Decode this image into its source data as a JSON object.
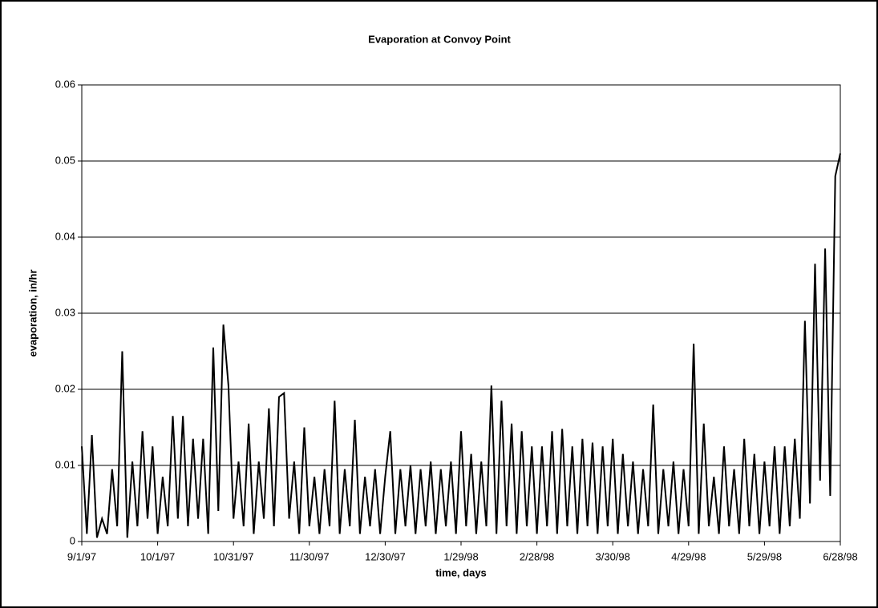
{
  "chart_data": {
    "type": "line",
    "title": "Evaporation at Convoy Point",
    "x_label": "time, days",
    "y_label": "evaporation, in/hr",
    "categories": [
      "9/1/97",
      null,
      null,
      null,
      null,
      null,
      null,
      null,
      null,
      null,
      null,
      null,
      null,
      null,
      null,
      "10/1/97",
      null,
      null,
      null,
      null,
      null,
      null,
      null,
      null,
      null,
      null,
      null,
      null,
      null,
      null,
      "10/31/97",
      null,
      null,
      null,
      null,
      null,
      null,
      null,
      null,
      null,
      null,
      null,
      null,
      null,
      null,
      "11/30/97",
      null,
      null,
      null,
      null,
      null,
      null,
      null,
      null,
      null,
      null,
      null,
      null,
      null,
      null,
      "12/30/97",
      null,
      null,
      null,
      null,
      null,
      null,
      null,
      null,
      null,
      null,
      null,
      null,
      null,
      null,
      "1/29/98",
      null,
      null,
      null,
      null,
      null,
      null,
      null,
      null,
      null,
      null,
      null,
      null,
      null,
      null,
      "2/28/98",
      null,
      null,
      null,
      null,
      null,
      null,
      null,
      null,
      null,
      null,
      null,
      null,
      null,
      null,
      "3/30/98",
      null,
      null,
      null,
      null,
      null,
      null,
      null,
      null,
      null,
      null,
      null,
      null,
      null,
      null,
      "4/29/98",
      null,
      null,
      null,
      null,
      null,
      null,
      null,
      null,
      null,
      null,
      null,
      null,
      null,
      null,
      "5/29/98",
      null,
      null,
      null,
      null,
      null,
      null,
      null,
      null,
      null,
      null,
      null,
      null,
      null,
      null,
      "6/28/98"
    ],
    "series": [
      {
        "name": "evaporation",
        "color": "#000000",
        "values": [
          0.0125,
          0.001,
          0.014,
          0.0005,
          0.003,
          0.001,
          0.0095,
          0.002,
          0.025,
          0.0005,
          0.0105,
          0.002,
          0.0145,
          0.003,
          0.0125,
          0.001,
          0.0085,
          0.002,
          0.0165,
          0.003,
          0.0165,
          0.002,
          0.0135,
          0.003,
          0.0135,
          0.001,
          0.0255,
          0.004,
          0.0285,
          0.0205,
          0.003,
          0.0105,
          0.002,
          0.0155,
          0.001,
          0.0105,
          0.003,
          0.0175,
          0.002,
          0.019,
          0.0195,
          0.003,
          0.0105,
          0.001,
          0.015,
          0.002,
          0.0085,
          0.001,
          0.0095,
          0.002,
          0.0185,
          0.001,
          0.0095,
          0.002,
          0.016,
          0.001,
          0.0085,
          0.002,
          0.0095,
          0.001,
          0.0085,
          0.0145,
          0.001,
          0.0095,
          0.002,
          0.01,
          0.001,
          0.0095,
          0.002,
          0.0105,
          0.001,
          0.0095,
          0.002,
          0.0105,
          0.001,
          0.0145,
          0.002,
          0.0115,
          0.001,
          0.0105,
          0.002,
          0.0205,
          0.001,
          0.0185,
          0.002,
          0.0155,
          0.001,
          0.0145,
          0.002,
          0.0125,
          0.001,
          0.0125,
          0.002,
          0.0145,
          0.001,
          0.0148,
          0.002,
          0.0125,
          0.001,
          0.0135,
          0.002,
          0.013,
          0.001,
          0.0125,
          0.002,
          0.0135,
          0.001,
          0.0115,
          0.002,
          0.0105,
          0.001,
          0.0095,
          0.002,
          0.018,
          0.001,
          0.0095,
          0.002,
          0.0105,
          0.001,
          0.0095,
          0.002,
          0.026,
          0.001,
          0.0155,
          0.002,
          0.0085,
          0.001,
          0.0125,
          0.002,
          0.0095,
          0.001,
          0.0135,
          0.002,
          0.0115,
          0.001,
          0.0105,
          0.002,
          0.0125,
          0.001,
          0.0125,
          0.002,
          0.0135,
          0.003,
          0.029,
          0.005,
          0.0365,
          0.008,
          0.0385,
          0.006,
          0.048,
          0.051
        ]
      }
    ],
    "ylim": [
      0,
      0.06
    ],
    "yticks": [
      0,
      0.01,
      0.02,
      0.03,
      0.04,
      0.05,
      0.06
    ],
    "grid": true
  }
}
